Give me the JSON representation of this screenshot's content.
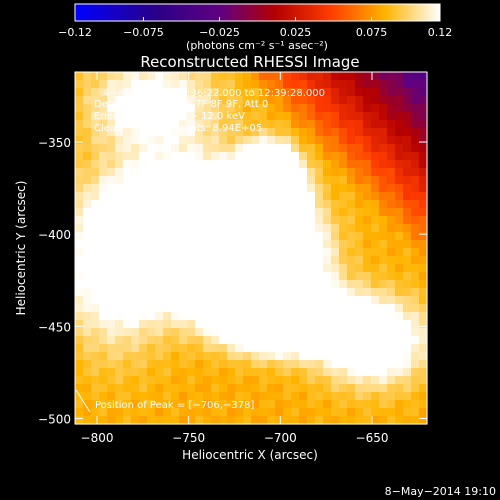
{
  "chart_data": {
    "type": "heatmap",
    "title": "Reconstructed RHESSI Image",
    "xlabel": "Heliocentric X (arcsec)",
    "ylabel": "Heliocentric Y (arcsec)",
    "xlim": [
      -812,
      -620
    ],
    "ylim": [
      -503,
      -312
    ],
    "x_ticks": [
      -800,
      -750,
      -700,
      -650
    ],
    "y_ticks": [
      -350,
      -400,
      -450,
      -500
    ],
    "x_tick_labels": [
      "−800",
      "−750",
      "−700",
      "−650"
    ],
    "y_tick_labels": [
      "−350",
      "−400",
      "−450",
      "−500"
    ],
    "colorbar": {
      "range": [
        -0.12,
        0.12
      ],
      "ticks": [
        -0.12,
        -0.075,
        -0.025,
        0.025,
        0.075,
        0.12
      ],
      "tick_labels": [
        "−0.12",
        "−0.075",
        "−0.025",
        "0.025",
        "0.075",
        "0.12"
      ],
      "unit_label": "(photons cm⁻² s⁻¹ asec⁻²)"
    },
    "annotations": [
      "4−Aug−2012 12:36:22.000 to 12:39:28.000",
      "Detectors: 3F 5F 6F 7F 8F 9F, Att 0",
      "Energy Range: 6.0 − 12.0 keV",
      "Clean",
      "Total counts: 8.94E+05"
    ],
    "peak_label": "Position of Peak = [−706,−378]",
    "peak": [
      -706,
      -378
    ],
    "blobs": [
      {
        "x": -706,
        "y": -378,
        "sx": 9,
        "sy": 12,
        "a": 0.55
      },
      {
        "x": -720,
        "y": -412,
        "sx": 22,
        "sy": 16,
        "a": 0.22
      },
      {
        "x": -745,
        "y": -398,
        "sx": 30,
        "sy": 22,
        "a": 0.14
      },
      {
        "x": -700,
        "y": -445,
        "sx": 22,
        "sy": 12,
        "a": 0.14
      },
      {
        "x": -650,
        "y": -458,
        "sx": 20,
        "sy": 16,
        "a": 0.07
      },
      {
        "x": -770,
        "y": -330,
        "sx": 24,
        "sy": 18,
        "a": 0.05
      },
      {
        "x": -790,
        "y": -420,
        "sx": 20,
        "sy": 30,
        "a": 0.05
      }
    ],
    "background": 0.082
  },
  "footer_date": "8−May−2014 19:10"
}
